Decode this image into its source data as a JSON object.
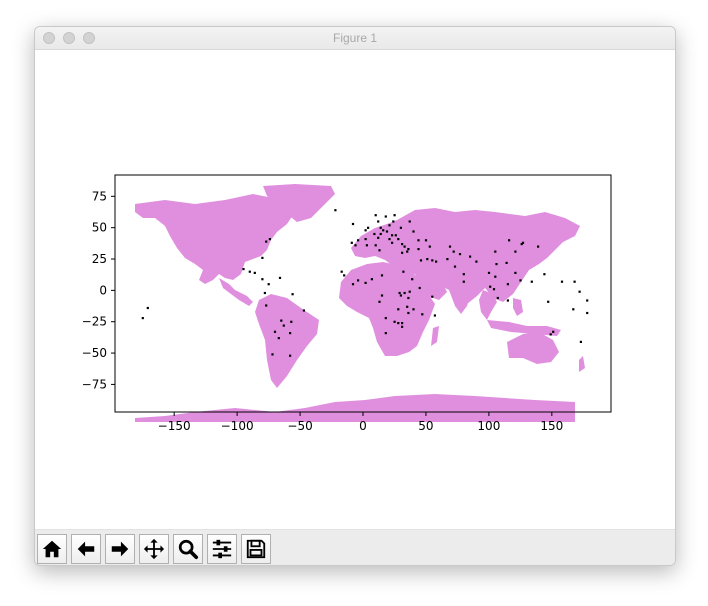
{
  "window": {
    "title": "Figure 1"
  },
  "toolbar": {
    "buttons": [
      {
        "name": "home-button",
        "icon": "home-icon"
      },
      {
        "name": "back-button",
        "icon": "arrow-left-icon"
      },
      {
        "name": "forward-button",
        "icon": "arrow-right-icon"
      },
      {
        "name": "pan-button",
        "icon": "move-icon"
      },
      {
        "name": "zoom-button",
        "icon": "zoom-icon"
      },
      {
        "name": "configure-subplots-button",
        "icon": "sliders-icon"
      },
      {
        "name": "save-button",
        "icon": "save-icon"
      }
    ]
  },
  "chart_data": {
    "type": "scatter",
    "title": "",
    "xlabel": "",
    "ylabel": "",
    "xlim": [
      -197,
      197
    ],
    "ylim": [
      -97,
      92
    ],
    "xticks": [
      -150,
      -100,
      -50,
      0,
      50,
      100,
      150
    ],
    "xtick_labels": [
      "−150",
      "−100",
      "−50",
      "0",
      "50",
      "100",
      "150"
    ],
    "yticks": [
      75,
      50,
      25,
      0,
      -25,
      -50,
      -75
    ],
    "ytick_labels": [
      "75",
      "50",
      "25",
      "0",
      "−25",
      "−50",
      "−75"
    ],
    "grid": false,
    "legend": "none",
    "land_color": "#e08fdf",
    "point_color": "#000000",
    "points": [
      [
        -175,
        -22
      ],
      [
        -171,
        -14
      ],
      [
        -77,
        39
      ],
      [
        -74,
        41
      ],
      [
        -80,
        26
      ],
      [
        -95,
        17
      ],
      [
        -90,
        15
      ],
      [
        -86,
        14
      ],
      [
        -80,
        9
      ],
      [
        -75,
        5
      ],
      [
        -66,
        10
      ],
      [
        -77,
        -12
      ],
      [
        -78,
        -2
      ],
      [
        -70,
        -33
      ],
      [
        -65,
        -24
      ],
      [
        -58,
        -34
      ],
      [
        -47,
        -16
      ],
      [
        -57,
        -25
      ],
      [
        -67,
        -38
      ],
      [
        -58,
        -52
      ],
      [
        -72,
        -51
      ],
      [
        -63,
        -28
      ],
      [
        -56,
        -3
      ],
      [
        -22,
        64
      ],
      [
        -8,
        53
      ],
      [
        -4,
        40
      ],
      [
        2,
        48
      ],
      [
        4,
        50
      ],
      [
        12,
        55
      ],
      [
        10,
        60
      ],
      [
        18,
        59
      ],
      [
        25,
        60
      ],
      [
        24,
        55
      ],
      [
        21,
        52
      ],
      [
        14,
        50
      ],
      [
        16,
        48
      ],
      [
        19,
        47
      ],
      [
        23,
        44
      ],
      [
        26,
        44
      ],
      [
        28,
        41
      ],
      [
        21,
        41
      ],
      [
        14,
        45
      ],
      [
        12,
        42
      ],
      [
        9,
        45
      ],
      [
        2,
        41
      ],
      [
        -9,
        38
      ],
      [
        -6,
        36
      ],
      [
        3,
        36
      ],
      [
        10,
        36
      ],
      [
        13,
        32
      ],
      [
        23,
        38
      ],
      [
        33,
        35
      ],
      [
        31,
        37
      ],
      [
        44,
        40
      ],
      [
        37,
        55
      ],
      [
        30,
        50
      ],
      [
        40,
        47
      ],
      [
        50,
        40
      ],
      [
        35,
        31
      ],
      [
        31,
        30
      ],
      [
        36,
        33
      ],
      [
        44,
        33
      ],
      [
        46,
        24
      ],
      [
        51,
        25
      ],
      [
        55,
        24
      ],
      [
        53,
        35
      ],
      [
        58,
        23
      ],
      [
        69,
        35
      ],
      [
        67,
        25
      ],
      [
        72,
        31
      ],
      [
        77,
        29
      ],
      [
        73,
        19
      ],
      [
        80,
        13
      ],
      [
        85,
        27
      ],
      [
        90,
        23
      ],
      [
        80,
        7
      ],
      [
        105,
        31
      ],
      [
        116,
        40
      ],
      [
        121,
        31
      ],
      [
        114,
        22
      ],
      [
        126,
        37
      ],
      [
        127,
        38
      ],
      [
        139,
        35
      ],
      [
        106,
        21
      ],
      [
        100,
        14
      ],
      [
        105,
        11
      ],
      [
        101,
        3
      ],
      [
        104,
        1
      ],
      [
        115,
        5
      ],
      [
        107,
        -6
      ],
      [
        121,
        14
      ],
      [
        125,
        8
      ],
      [
        115,
        -8
      ],
      [
        144,
        13
      ],
      [
        158,
        7
      ],
      [
        168,
        7
      ],
      [
        134,
        7
      ],
      [
        172,
        -1
      ],
      [
        178,
        -8
      ],
      [
        167,
        -15
      ],
      [
        147,
        -9
      ],
      [
        178,
        -18
      ],
      [
        173,
        -41
      ],
      [
        149,
        -35
      ],
      [
        151,
        -33
      ],
      [
        -17,
        15
      ],
      [
        -15,
        12
      ],
      [
        -8,
        5
      ],
      [
        -4,
        8
      ],
      [
        2,
        6
      ],
      [
        7,
        9
      ],
      [
        15,
        12
      ],
      [
        32,
        15
      ],
      [
        39,
        9
      ],
      [
        45,
        2
      ],
      [
        37,
        -1
      ],
      [
        36,
        -6
      ],
      [
        33,
        -2
      ],
      [
        29,
        -2
      ],
      [
        30,
        -4
      ],
      [
        15,
        -4
      ],
      [
        13,
        -9
      ],
      [
        18,
        -22
      ],
      [
        28,
        -26
      ],
      [
        31,
        -26
      ],
      [
        28,
        -15
      ],
      [
        35,
        -13
      ],
      [
        40,
        -15
      ],
      [
        47,
        -19
      ],
      [
        57,
        -20
      ],
      [
        55,
        -5
      ],
      [
        18,
        -34
      ],
      [
        31,
        -29
      ],
      [
        36,
        -18
      ],
      [
        25,
        -25
      ]
    ]
  }
}
